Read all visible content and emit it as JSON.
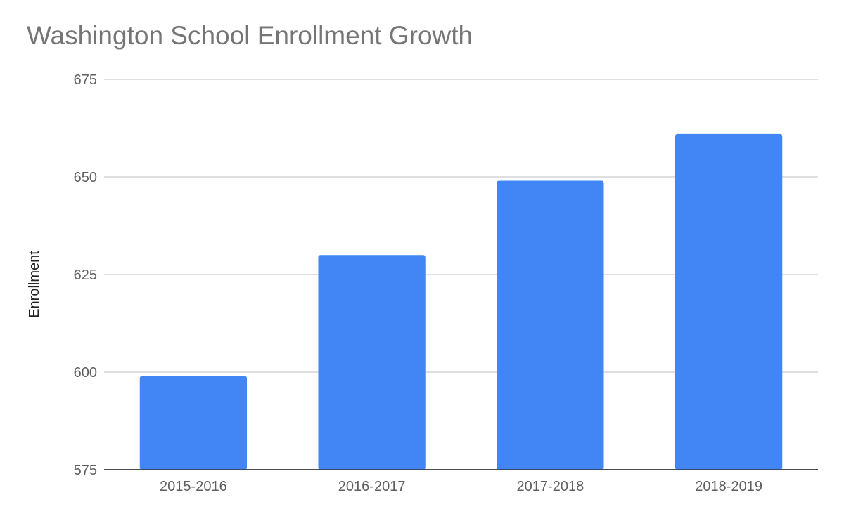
{
  "chart_data": {
    "type": "bar",
    "title": "Washington School Enrollment Growth",
    "xlabel": "",
    "ylabel": "Enrollment",
    "categories": [
      "2015-2016",
      "2016-2017",
      "2017-2018",
      "2018-2019"
    ],
    "values": [
      599,
      630,
      649,
      661
    ],
    "ylim": [
      575,
      675
    ],
    "yticks": [
      575,
      600,
      625,
      650,
      675
    ],
    "grid": true,
    "legend": "none",
    "bar_color": "#4285f4",
    "grid_color": "#cccccc"
  }
}
